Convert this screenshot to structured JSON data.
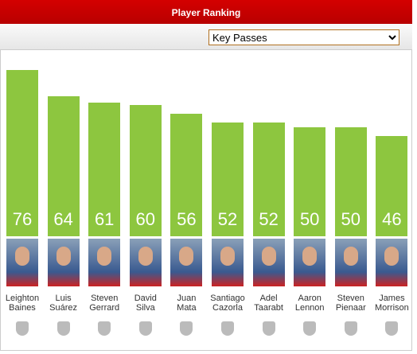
{
  "header": {
    "title": "Player Ranking"
  },
  "selector": {
    "selected": "Key Passes"
  },
  "chart_data": {
    "type": "bar",
    "categories": [
      "Leighton\nBaines",
      "Luis\nSuárez",
      "Steven\nGerrard",
      "David\nSilva",
      "Juan\nMata",
      "Santiago\nCazorla",
      "Adel\nTaarabt",
      "Aaron\nLennon",
      "Steven\nPienaar",
      "James\nMorrison"
    ],
    "values": [
      76,
      64,
      61,
      60,
      56,
      52,
      52,
      50,
      50,
      46
    ],
    "color": "#8dc63f"
  }
}
